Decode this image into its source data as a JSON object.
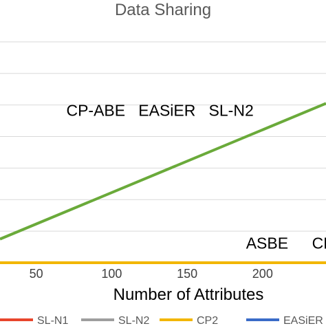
{
  "chart_data": {
    "type": "line",
    "title": "Data Sharing",
    "xlabel": "Number of Attributes",
    "ylabel": "",
    "x_ticks": [
      50,
      100,
      150,
      200
    ],
    "xlim": [
      26,
      242
    ],
    "ylim": [
      0,
      8
    ],
    "y_gridlines": [
      1,
      2,
      3,
      4,
      5,
      6,
      7
    ],
    "grid": true,
    "legend_position": "bottom",
    "series": [
      {
        "name": "SL-N1",
        "color": "#e8452c",
        "x": [],
        "values": []
      },
      {
        "name": "SL-N2",
        "color": "#9e9e9e",
        "x": [],
        "values": []
      },
      {
        "name": "CP2",
        "color": "#f2b600",
        "x": [
          26,
          242
        ],
        "values": [
          0,
          0
        ]
      },
      {
        "name": "EASiER",
        "color": "#3a6bc8",
        "x": [],
        "values": []
      },
      {
        "name": "",
        "color": "#6aaa3a",
        "x": [
          26,
          242
        ],
        "values": [
          0.75,
          5.05
        ]
      }
    ],
    "annotations": [
      {
        "text": "CP-ABE   EASiER   SL-N2",
        "x": 132,
        "y": 4.65
      },
      {
        "text": "ASBE",
        "x": 203,
        "y": 0.45
      },
      {
        "text": "CP",
        "x": 240,
        "y": 0.45
      }
    ]
  }
}
